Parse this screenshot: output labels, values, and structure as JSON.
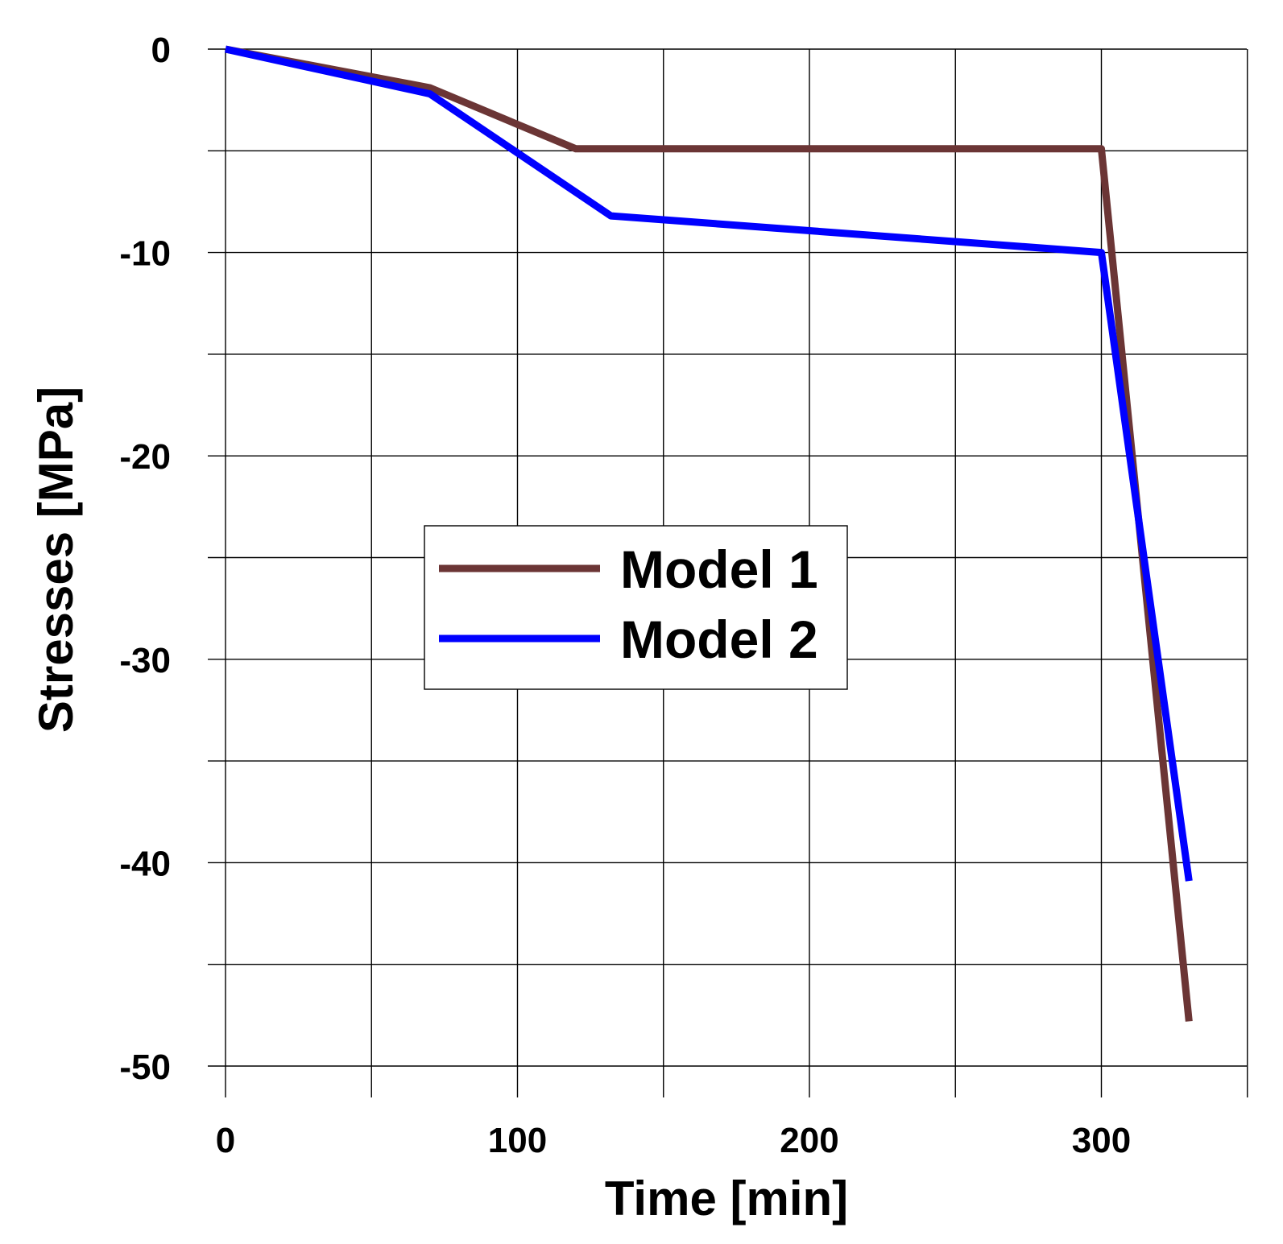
{
  "chart_data": {
    "type": "line",
    "title": "",
    "xlabel": "Time [min]",
    "ylabel": "Stresses [MPa]",
    "xlim": [
      0,
      350
    ],
    "ylim": [
      -50,
      0
    ],
    "x_ticks": [
      0,
      100,
      200,
      300
    ],
    "x_tick_labels": [
      "0",
      "100",
      "200",
      "300"
    ],
    "x_grid_step": 50,
    "y_ticks": [
      0,
      -10,
      -20,
      -30,
      -40,
      -50
    ],
    "y_tick_labels": [
      "0",
      "-10",
      "-20",
      "-30",
      "-40",
      "-50"
    ],
    "y_grid_step": 5,
    "grid": true,
    "legend_position": "center",
    "series": [
      {
        "name": "Model 1",
        "color": "#6b3535",
        "x": [
          0,
          70,
          120,
          300,
          330
        ],
        "y": [
          0,
          -1.9,
          -4.9,
          -4.9,
          -47.8
        ]
      },
      {
        "name": "Model 2",
        "color": "#0000ff",
        "x": [
          0,
          70,
          132,
          300,
          330
        ],
        "y": [
          0,
          -2.2,
          -8.2,
          -10.0,
          -40.9
        ]
      }
    ]
  }
}
